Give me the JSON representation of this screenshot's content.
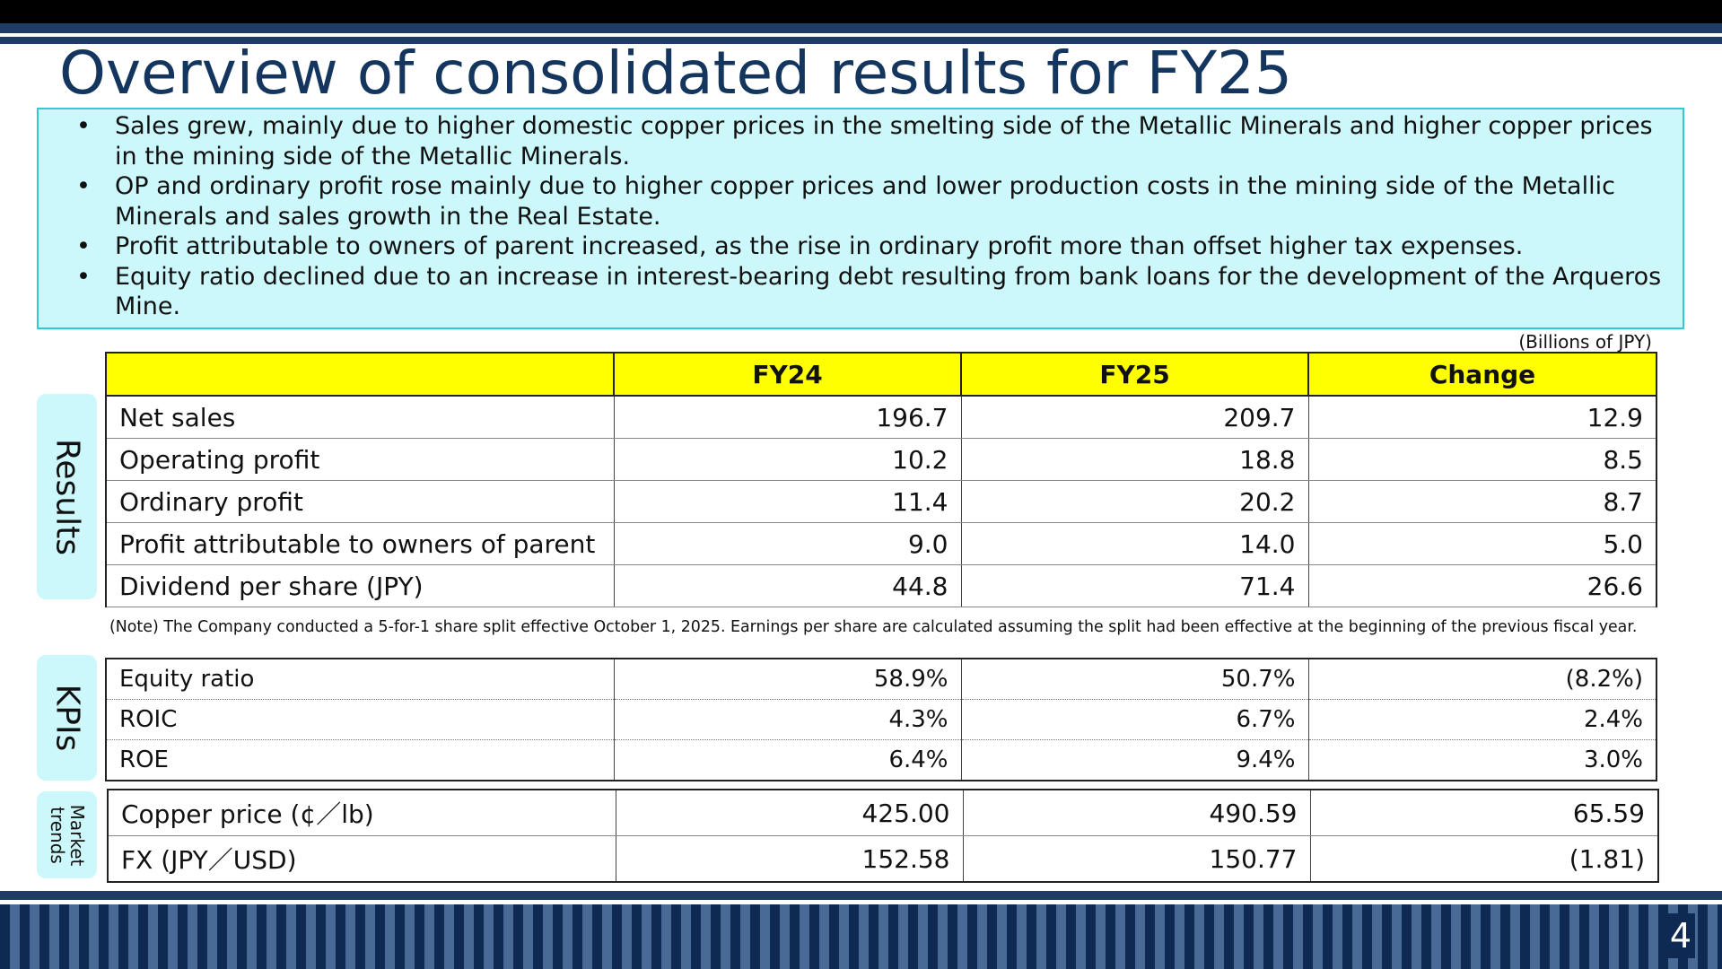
{
  "title": "Overview of consolidated results for FY25",
  "summary": {
    "bullets": [
      "Sales grew, mainly due to higher domestic copper prices in the smelting side of the Metallic Minerals and higher copper prices in the mining side of the Metallic Minerals.",
      "OP and ordinary profit rose mainly due to higher copper prices and lower production costs in the mining side of the Metallic Minerals and sales growth in the Real Estate.",
      "Profit attributable to owners of parent increased, as the rise in ordinary profit more than offset higher tax expenses.",
      "Equity ratio declined due to an increase in interest-bearing debt resulting from bank loans for the development of the Arqueros Mine."
    ]
  },
  "unit": "(Billions of JPY)",
  "side_labels": {
    "results": "Results",
    "kpis": "KPIs",
    "market_line1": "Market",
    "market_line2": "trends"
  },
  "headers": [
    "FY24",
    "FY25",
    "Change"
  ],
  "results_rows": [
    [
      "Net sales",
      "196.7",
      "209.7",
      "12.9"
    ],
    [
      "Operating profit",
      "10.2",
      "18.8",
      "8.5"
    ],
    [
      "Ordinary profit",
      "11.4",
      "20.2",
      "8.7"
    ],
    [
      "Profit attributable to owners of parent",
      "9.0",
      "14.0",
      "5.0"
    ],
    [
      "Dividend per share (JPY)",
      "44.8",
      "71.4",
      "26.6"
    ]
  ],
  "note": "(Note) The Company conducted a 5-for-1 share split effective October 1, 2025. Earnings per share are calculated  assuming the split had been effective at the beginning of the previous fiscal year.",
  "kpi_rows": [
    [
      "Equity ratio",
      "58.9%",
      "50.7%",
      "(8.2%)"
    ],
    [
      "ROIC",
      "4.3%",
      "6.7%",
      "2.4%"
    ],
    [
      "ROE",
      "6.4%",
      "9.4%",
      "3.0%"
    ]
  ],
  "market_rows": [
    [
      "Copper price (¢／lb)",
      "425.00",
      "490.59",
      "65.59"
    ],
    [
      "FX (JPY／USD)",
      "152.58",
      "150.77",
      "(1.81)"
    ]
  ],
  "page_number": "4",
  "colors": {
    "title": "#14365e",
    "header_fill": "#ffff00",
    "summary_fill": "#ccf8fb",
    "summary_border": "#34c8d4",
    "band": "#1e3c64"
  }
}
